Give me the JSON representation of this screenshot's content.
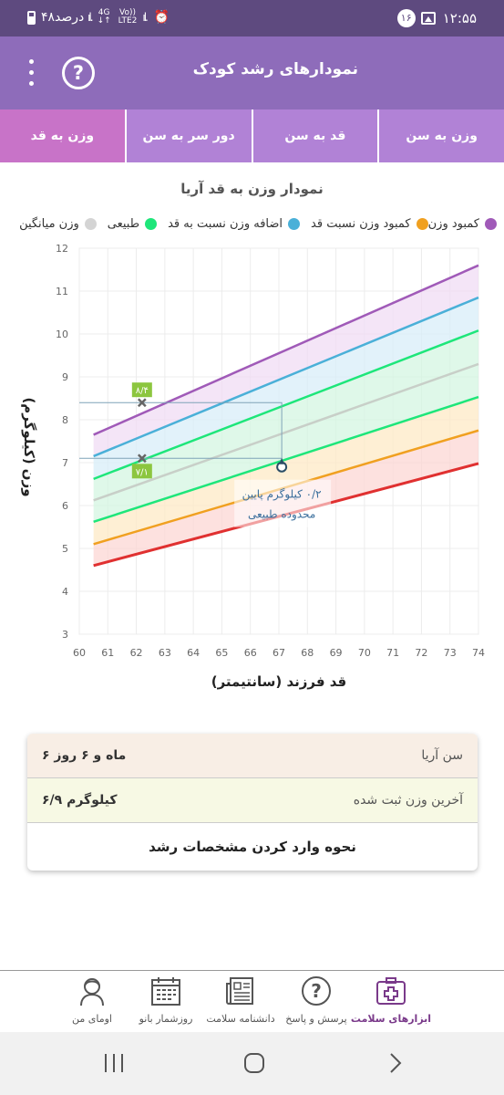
{
  "status_bar": {
    "time": "۱۲:۵۵",
    "notif_count": "۱۶",
    "battery_text": "۴۸درصد",
    "net_top": "4G",
    "net_bottom": "LTE2",
    "volte": "Vo))"
  },
  "app_bar": {
    "title": "نمودارهای رشد کودک",
    "help_symbol": "?"
  },
  "tabs": [
    {
      "label": "وزن به سن",
      "active": false
    },
    {
      "label": "قد به سن",
      "active": false
    },
    {
      "label": "دور سر به سن",
      "active": false
    },
    {
      "label": "وزن به قد",
      "active": true
    }
  ],
  "chart_title": "نمودار وزن به قد آریا",
  "legend": [
    {
      "label": "کمبود وزن نسبت قد",
      "color": "#f0a020"
    },
    {
      "label": "اضافه وزن نسبت به قد",
      "color": "#4ab0d8"
    },
    {
      "label": "طبیعی",
      "color": "#1ee67a"
    },
    {
      "label": "وزن میانگین",
      "color": "#d4d4d4"
    }
  ],
  "legend_extra": {
    "label": "کمبود وزن",
    "color": "#a05ab8"
  },
  "chart_data": {
    "type": "line",
    "xlabel": "قد فرزند (سانتیمتر)",
    "ylabel": "وزن (کیلوگرم)",
    "xlim": [
      60,
      74
    ],
    "ylim": [
      3,
      12
    ],
    "x_ticks": [
      "60",
      "61",
      "62",
      "63",
      "64",
      "65",
      "66",
      "67",
      "68",
      "69",
      "70",
      "71",
      "72",
      "73",
      "74"
    ],
    "y_ticks": [
      "3",
      "4",
      "5",
      "6",
      "7",
      "8",
      "9",
      "10",
      "11",
      "12"
    ],
    "x": [
      60.5,
      74
    ],
    "series": [
      {
        "color": "#a05ab8",
        "values": [
          7.65,
          11.6
        ]
      },
      {
        "color": "#4ab0d8",
        "values": [
          7.15,
          10.85
        ]
      },
      {
        "color": "#1ee67a",
        "values": [
          6.62,
          10.08
        ]
      },
      {
        "color": "#c8cfc8",
        "values": [
          6.12,
          9.3
        ]
      },
      {
        "color": "#1ee67a",
        "values": [
          5.62,
          8.53
        ]
      },
      {
        "color": "#f0a020",
        "values": [
          5.1,
          7.75
        ]
      },
      {
        "color": "#e03030",
        "values": [
          4.6,
          6.98
        ]
      }
    ],
    "markers": [
      {
        "x": 62.2,
        "y": 8.4,
        "label": "۸/۴"
      },
      {
        "x": 62.2,
        "y": 7.1,
        "label": "۷/۱"
      }
    ],
    "point": {
      "x": 67.1,
      "y": 6.9
    },
    "annotation_line1": "۰/۲ کیلوگرم پایین",
    "annotation_line2": "محدوده طبیعی"
  },
  "info_card": {
    "age_label": "سن آریا",
    "age_value": "۶ ماه و ۶ روز",
    "weight_label": "آخرین وزن ثبت شده",
    "weight_value": "۶/۹ کیلوگرم",
    "link": "نحوه وارد کردن مشخصات رشد"
  },
  "bottom_nav": [
    {
      "label": "ابزارهای سلامت",
      "icon": "medkit-icon",
      "active": true
    },
    {
      "label": "پرسش و پاسخ",
      "icon": "question-icon",
      "active": false
    },
    {
      "label": "دانشنامه سلامت",
      "icon": "newspaper-icon",
      "active": false
    },
    {
      "label": "روزشمار بانو",
      "icon": "calendar-icon",
      "active": false
    },
    {
      "label": "اومای من",
      "icon": "person-icon",
      "active": false
    }
  ]
}
